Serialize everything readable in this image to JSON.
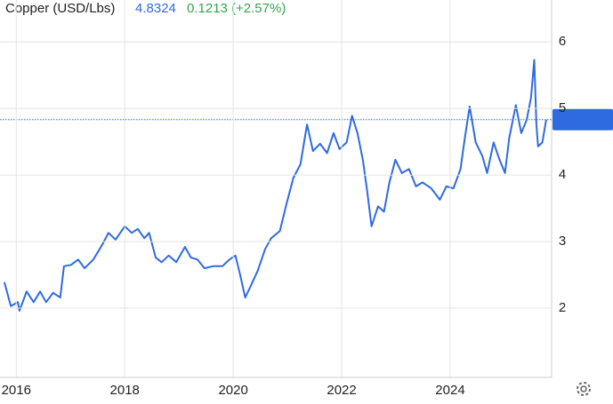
{
  "chart_data": {
    "type": "line",
    "title": "Copper (USD/Lbs)",
    "price_label": "4.8324",
    "change_label": "0.1213 (+2.57%)",
    "x": [
      2015.78,
      2015.9,
      2016.03,
      2016.06,
      2016.19,
      2016.32,
      2016.44,
      2016.55,
      2016.68,
      2016.81,
      2016.88,
      2017.01,
      2017.14,
      2017.26,
      2017.42,
      2017.59,
      2017.7,
      2017.83,
      2018.0,
      2018.13,
      2018.24,
      2018.36,
      2018.45,
      2018.57,
      2018.68,
      2018.81,
      2018.95,
      2019.11,
      2019.22,
      2019.34,
      2019.47,
      2019.63,
      2019.8,
      2019.93,
      2020.04,
      2020.13,
      2020.22,
      2020.32,
      2020.45,
      2020.59,
      2020.7,
      2020.86,
      2020.98,
      2021.11,
      2021.24,
      2021.36,
      2021.47,
      2021.6,
      2021.73,
      2021.85,
      2021.96,
      2022.09,
      2022.19,
      2022.29,
      2022.39,
      2022.47,
      2022.55,
      2022.67,
      2022.78,
      2022.88,
      2022.99,
      2023.11,
      2023.24,
      2023.37,
      2023.49,
      2023.65,
      2023.81,
      2023.93,
      2024.06,
      2024.19,
      2024.27,
      2024.36,
      2024.47,
      2024.59,
      2024.68,
      2024.8,
      2024.91,
      2025.01,
      2025.09,
      2025.21,
      2025.31,
      2025.41,
      2025.49,
      2025.55,
      2025.59,
      2025.62,
      2025.7,
      2025.77
    ],
    "series": [
      {
        "name": "Copper",
        "color": "#2f6be0",
        "values": [
          2.39,
          2.03,
          2.09,
          1.96,
          2.25,
          2.09,
          2.25,
          2.09,
          2.23,
          2.16,
          2.63,
          2.65,
          2.73,
          2.6,
          2.73,
          2.96,
          3.13,
          3.03,
          3.23,
          3.13,
          3.19,
          3.05,
          3.13,
          2.76,
          2.69,
          2.79,
          2.69,
          2.92,
          2.76,
          2.73,
          2.6,
          2.63,
          2.63,
          2.73,
          2.79,
          2.49,
          2.16,
          2.33,
          2.56,
          2.89,
          3.05,
          3.16,
          3.56,
          3.96,
          4.16,
          4.76,
          4.36,
          4.47,
          4.33,
          4.63,
          4.39,
          4.49,
          4.89,
          4.63,
          4.23,
          3.76,
          3.23,
          3.53,
          3.45,
          3.89,
          4.23,
          4.03,
          4.09,
          3.83,
          3.89,
          3.8,
          3.63,
          3.83,
          3.8,
          4.09,
          4.56,
          5.03,
          4.49,
          4.29,
          4.03,
          4.49,
          4.23,
          4.03,
          4.56,
          5.05,
          4.63,
          4.83,
          5.16,
          5.73,
          4.76,
          4.43,
          4.49,
          4.8324
        ]
      }
    ],
    "xlim": [
      2015.7,
      2025.87
    ],
    "xticks": [
      2016,
      2018,
      2020,
      2022,
      2024
    ],
    "ylim": [
      0.96,
      6.63
    ],
    "yticks": [
      2,
      3,
      4,
      5,
      6
    ],
    "grid": true
  }
}
